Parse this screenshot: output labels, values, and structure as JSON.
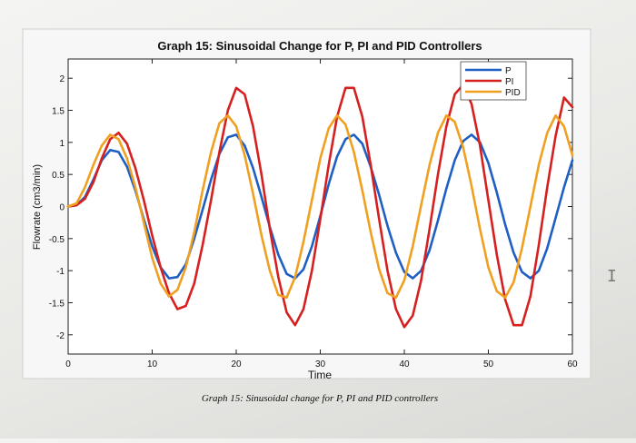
{
  "caption": "Graph 15: Sinusoidal change for P, PI and PID controllers",
  "chart_data": {
    "type": "line",
    "title": "Graph 15: Sinusoidal Change for P, PI and PID Controllers",
    "xlabel": "Time",
    "ylabel": "Flowrate (cm3/min)",
    "xlim": [
      0,
      60
    ],
    "ylim": [
      -2.3,
      2.3
    ],
    "xticks": [
      0,
      10,
      20,
      30,
      40,
      50,
      60
    ],
    "yticks": [
      2,
      1.5,
      1,
      0.5,
      0,
      -0.5,
      -1,
      -1.5,
      -2
    ],
    "ytick_labels": [
      "2",
      "1.5",
      "1",
      "0.5",
      "0",
      "-0.5",
      "-1",
      "-1.5",
      "-2"
    ],
    "grid": false,
    "legend_position": "top-right",
    "x": [
      0,
      1,
      2,
      3,
      4,
      5,
      6,
      7,
      8,
      9,
      10,
      11,
      12,
      13,
      14,
      15,
      16,
      17,
      18,
      19,
      20,
      21,
      22,
      23,
      24,
      25,
      26,
      27,
      28,
      29,
      30,
      31,
      32,
      33,
      34,
      35,
      36,
      37,
      38,
      39,
      40,
      41,
      42,
      43,
      44,
      45,
      46,
      47,
      48,
      49,
      50,
      51,
      52,
      53,
      54,
      55,
      56,
      57,
      58,
      59,
      60
    ],
    "series": [
      {
        "name": "P",
        "color": "#1f5fc4",
        "values": [
          0,
          0.02,
          0.15,
          0.42,
          0.72,
          0.88,
          0.85,
          0.62,
          0.25,
          -0.2,
          -0.62,
          -0.95,
          -1.12,
          -1.1,
          -0.9,
          -0.5,
          -0.05,
          0.42,
          0.82,
          1.08,
          1.12,
          0.95,
          0.6,
          0.15,
          -0.32,
          -0.75,
          -1.05,
          -1.12,
          -0.98,
          -0.62,
          -0.15,
          0.35,
          0.78,
          1.05,
          1.12,
          0.98,
          0.62,
          0.18,
          -0.3,
          -0.72,
          -1.02,
          -1.12,
          -1.0,
          -0.68,
          -0.22,
          0.28,
          0.72,
          1.02,
          1.12,
          1.0,
          0.68,
          0.22,
          -0.28,
          -0.72,
          -1.02,
          -1.12,
          -1.0,
          -0.65,
          -0.18,
          0.3,
          0.72
        ]
      },
      {
        "name": "PI",
        "color": "#d62020",
        "values": [
          0,
          0.02,
          0.12,
          0.38,
          0.75,
          1.05,
          1.15,
          0.98,
          0.6,
          0.1,
          -0.45,
          -0.95,
          -1.35,
          -1.6,
          -1.55,
          -1.2,
          -0.6,
          0.1,
          0.85,
          1.5,
          1.85,
          1.75,
          1.25,
          0.5,
          -0.35,
          -1.1,
          -1.65,
          -1.85,
          -1.6,
          -1.0,
          -0.2,
          0.65,
          1.4,
          1.85,
          1.85,
          1.4,
          0.65,
          -0.2,
          -1.0,
          -1.6,
          -1.88,
          -1.7,
          -1.15,
          -0.35,
          0.5,
          1.25,
          1.75,
          1.9,
          1.6,
          0.95,
          0.1,
          -0.75,
          -1.45,
          -1.85,
          -1.85,
          -1.4,
          -0.6,
          0.3,
          1.1,
          1.7,
          1.55
        ]
      },
      {
        "name": "PID",
        "color": "#f0a020",
        "values": [
          0,
          0.05,
          0.3,
          0.65,
          0.95,
          1.12,
          1.05,
          0.75,
          0.3,
          -0.25,
          -0.8,
          -1.2,
          -1.4,
          -1.3,
          -0.95,
          -0.4,
          0.25,
          0.85,
          1.3,
          1.42,
          1.25,
          0.8,
          0.2,
          -0.45,
          -1.0,
          -1.38,
          -1.42,
          -1.1,
          -0.55,
          0.1,
          0.75,
          1.22,
          1.42,
          1.28,
          0.85,
          0.25,
          -0.4,
          -0.98,
          -1.35,
          -1.42,
          -1.15,
          -0.62,
          0.02,
          0.65,
          1.15,
          1.42,
          1.32,
          0.92,
          0.32,
          -0.35,
          -0.95,
          -1.32,
          -1.42,
          -1.18,
          -0.65,
          0.0,
          0.65,
          1.15,
          1.42,
          1.25,
          0.8
        ]
      }
    ]
  }
}
